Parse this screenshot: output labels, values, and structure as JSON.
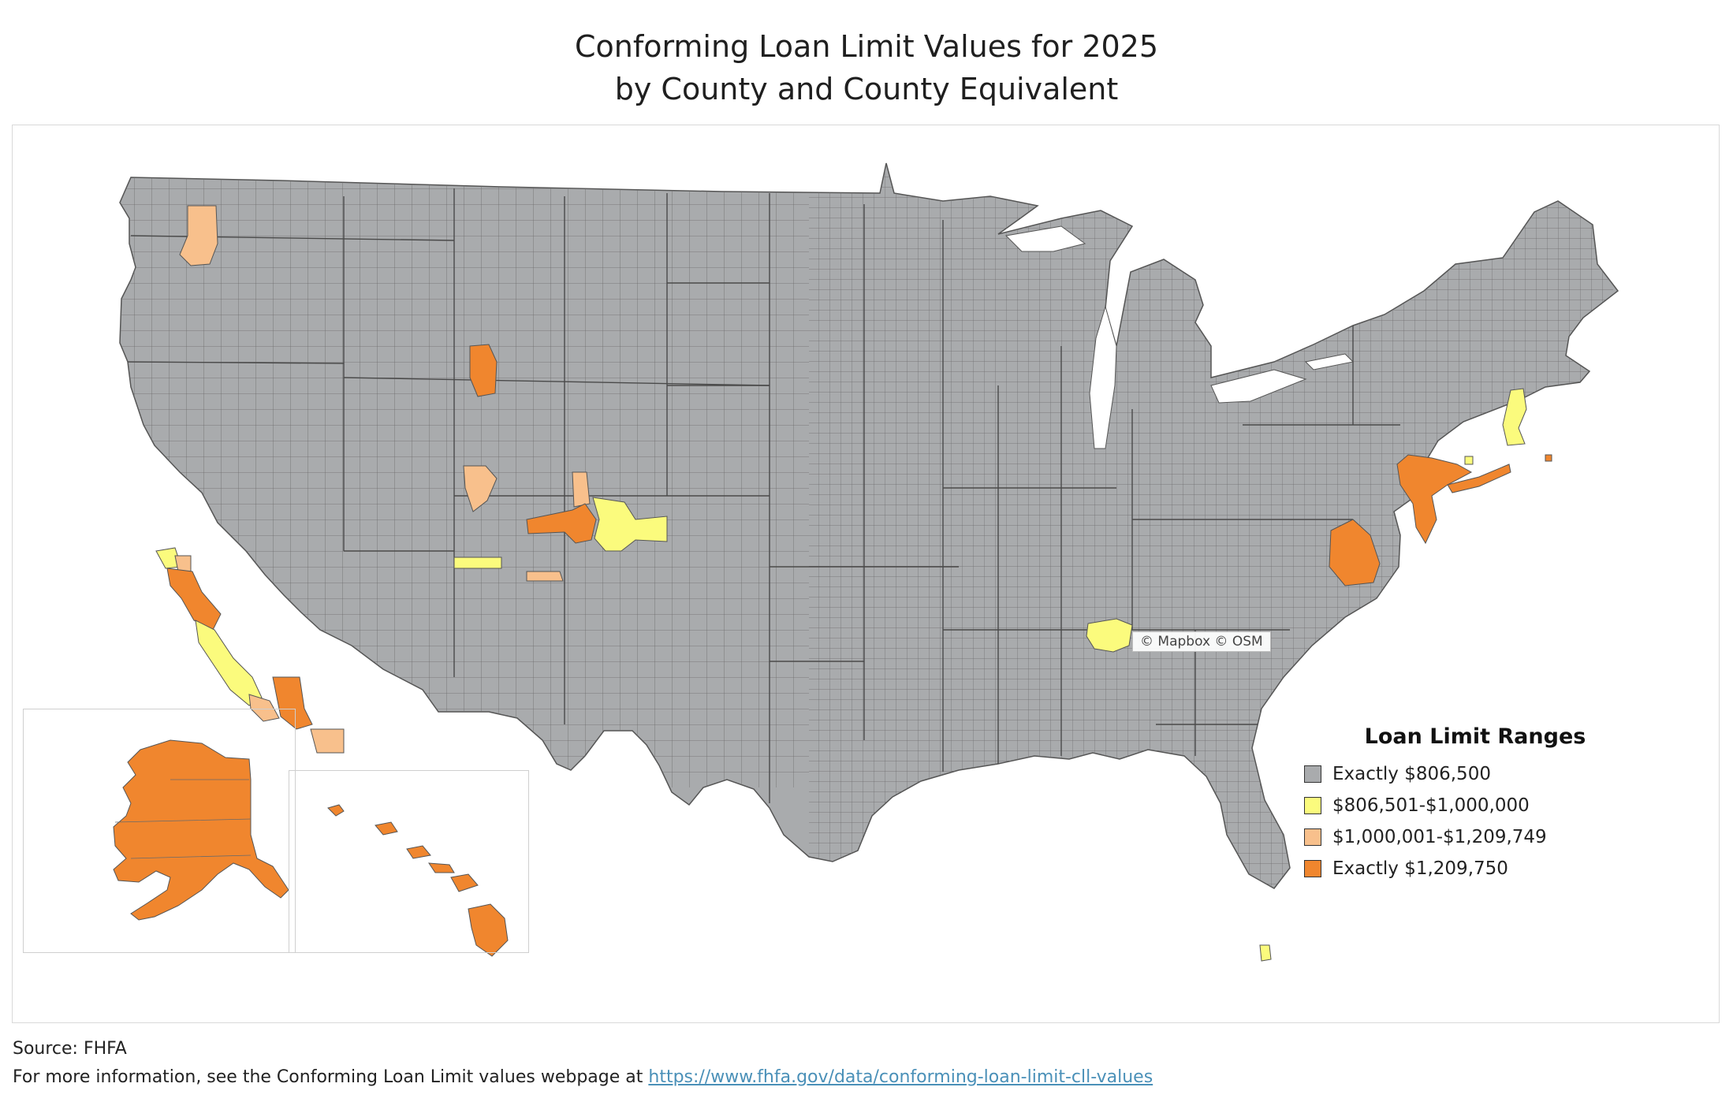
{
  "title": {
    "line1": "Conforming Loan Limit Values for 2025",
    "line2": "by County and County Equivalent"
  },
  "legend": {
    "title": "Loan Limit Ranges",
    "items": [
      {
        "label": "Exactly $806,500",
        "color": "#a9abad"
      },
      {
        "label": "$806,501-$1,000,000",
        "color": "#fbfb7d"
      },
      {
        "label": "$1,000,001-$1,209,749",
        "color": "#f8c08c"
      },
      {
        "label": "Exactly $1,209,750",
        "color": "#f0862e"
      }
    ]
  },
  "map": {
    "attribution": "© Mapbox © OSM",
    "border_color": "#555555",
    "base_color": "#a9abad"
  },
  "footer": {
    "source": "Source: FHFA",
    "info_prefix": "For more information, see the Conforming Loan Limit values webpage at ",
    "link_text": "https://www.fhfa.gov/data/conforming-loan-limit-cll-values"
  }
}
